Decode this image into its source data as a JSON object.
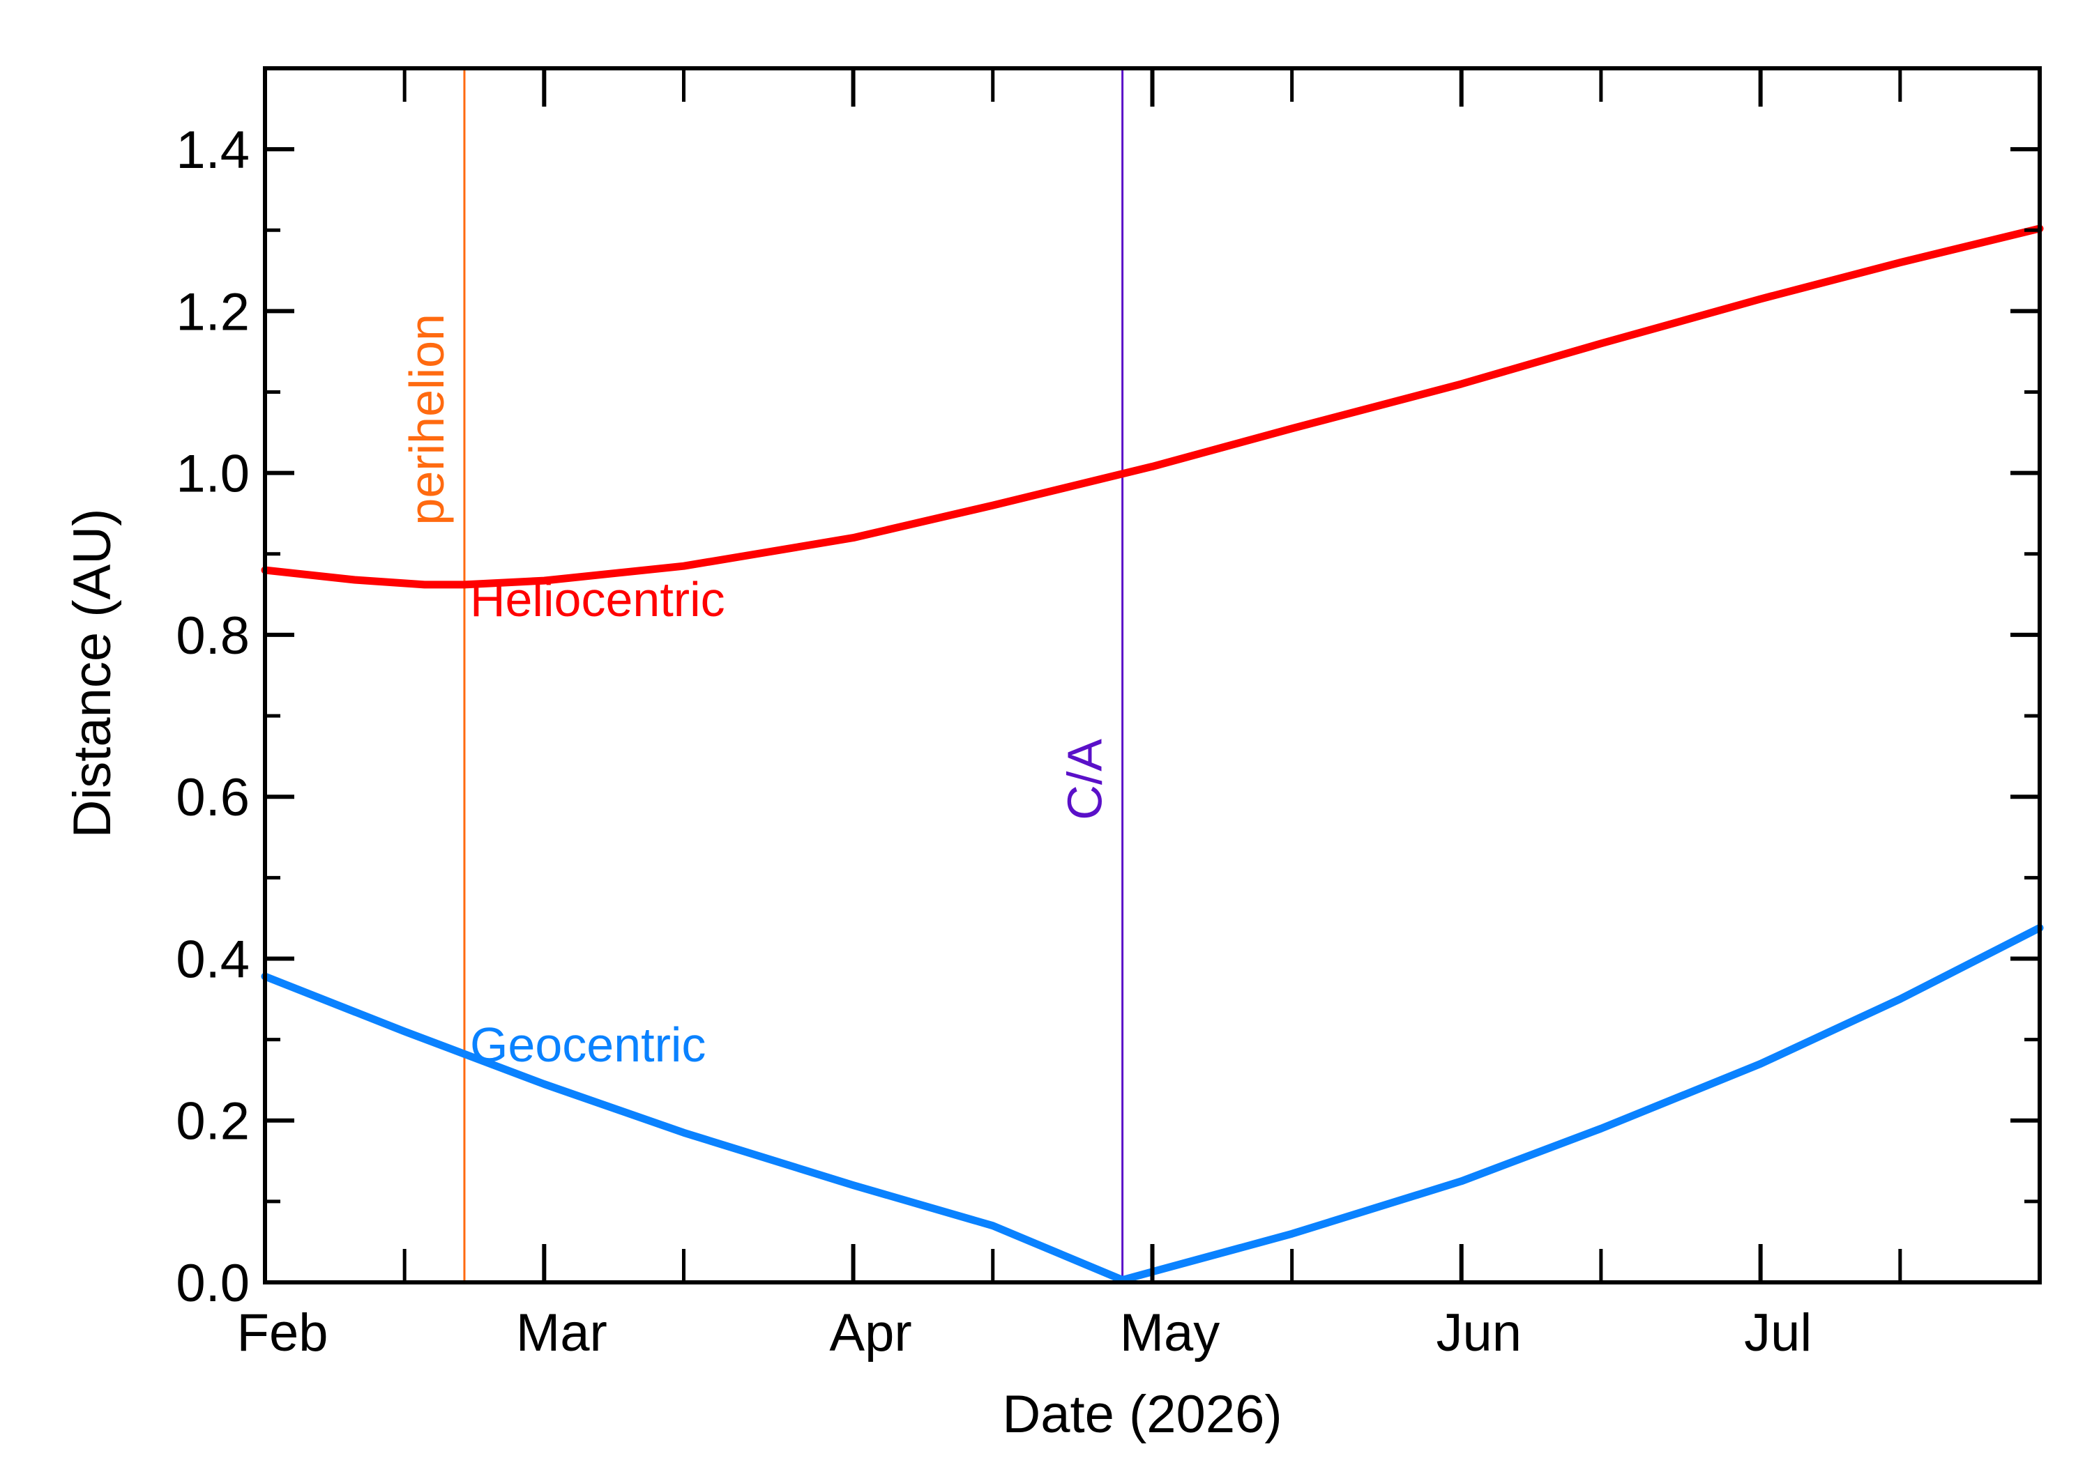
{
  "chart_data": {
    "type": "line",
    "xlabel": "Date (2026)",
    "ylabel": "Distance (AU)",
    "xlim": [
      "2026-02-01",
      "2026-07-29"
    ],
    "ylim": [
      0.0,
      1.5
    ],
    "x_tick_labels": [
      {
        "date": "2026-02-01",
        "label": "Feb"
      },
      {
        "date": "2026-03-01",
        "label": "Mar"
      },
      {
        "date": "2026-04-01",
        "label": "Apr"
      },
      {
        "date": "2026-05-01",
        "label": "May"
      },
      {
        "date": "2026-06-01",
        "label": "Jun"
      },
      {
        "date": "2026-07-01",
        "label": "Jul"
      }
    ],
    "x_minor_ticks": [
      "2026-02-15",
      "2026-03-15",
      "2026-04-15",
      "2026-05-15",
      "2026-06-15",
      "2026-07-15"
    ],
    "y_ticks": [
      0.0,
      0.2,
      0.4,
      0.6,
      0.8,
      1.0,
      1.2,
      1.4
    ],
    "y_tick_labels": [
      "0.0",
      "0.2",
      "0.4",
      "0.6",
      "0.8",
      "1.0",
      "1.2",
      "1.4"
    ],
    "y_minor_step": 0.1,
    "grid": false,
    "series": [
      {
        "name": "Heliocentric",
        "color": "#ff0000",
        "points": [
          {
            "x": "2026-02-01",
            "y": 0.88
          },
          {
            "x": "2026-02-10",
            "y": 0.868
          },
          {
            "x": "2026-02-17",
            "y": 0.862
          },
          {
            "x": "2026-02-21",
            "y": 0.862
          },
          {
            "x": "2026-03-01",
            "y": 0.867
          },
          {
            "x": "2026-03-15",
            "y": 0.885
          },
          {
            "x": "2026-04-01",
            "y": 0.92
          },
          {
            "x": "2026-04-15",
            "y": 0.96
          },
          {
            "x": "2026-05-01",
            "y": 1.008
          },
          {
            "x": "2026-05-15",
            "y": 1.055
          },
          {
            "x": "2026-06-01",
            "y": 1.11
          },
          {
            "x": "2026-06-15",
            "y": 1.16
          },
          {
            "x": "2026-07-01",
            "y": 1.215
          },
          {
            "x": "2026-07-15",
            "y": 1.26
          },
          {
            "x": "2026-07-29",
            "y": 1.302
          }
        ]
      },
      {
        "name": "Geocentric",
        "color": "#0a82ff",
        "points": [
          {
            "x": "2026-02-01",
            "y": 0.378
          },
          {
            "x": "2026-02-15",
            "y": 0.31
          },
          {
            "x": "2026-03-01",
            "y": 0.245
          },
          {
            "x": "2026-03-15",
            "y": 0.185
          },
          {
            "x": "2026-04-01",
            "y": 0.12
          },
          {
            "x": "2026-04-15",
            "y": 0.07
          },
          {
            "x": "2026-04-28",
            "y": 0.003
          },
          {
            "x": "2026-05-15",
            "y": 0.06
          },
          {
            "x": "2026-06-01",
            "y": 0.125
          },
          {
            "x": "2026-06-15",
            "y": 0.19
          },
          {
            "x": "2026-07-01",
            "y": 0.27
          },
          {
            "x": "2026-07-15",
            "y": 0.35
          },
          {
            "x": "2026-07-29",
            "y": 0.438
          }
        ]
      }
    ],
    "markers": [
      {
        "date": "2026-02-21",
        "label": "perihelion",
        "color": "#ff6a10"
      },
      {
        "date": "2026-04-28",
        "label": "C/A",
        "color": "#5a10c8"
      }
    ]
  }
}
